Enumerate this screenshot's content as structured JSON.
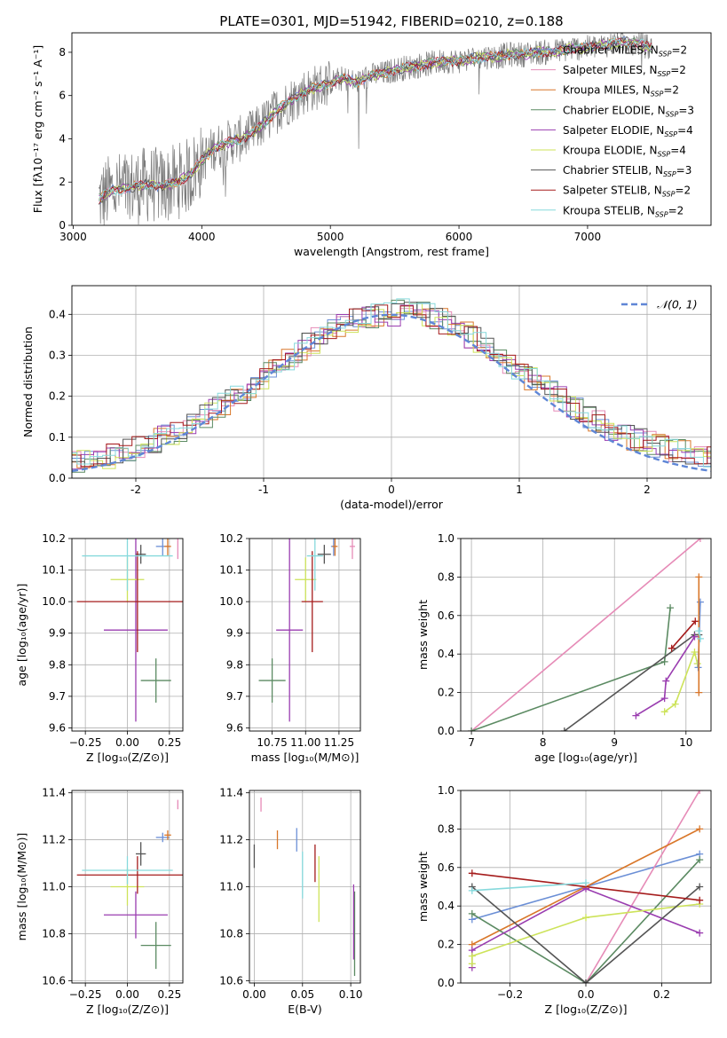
{
  "colors": {
    "chabrier_miles": "#6b8fd6",
    "salpeter_miles": "#e68bb7",
    "kroupa_miles": "#d9772a",
    "chabrier_elodie": "#5b8a62",
    "salpeter_elodie": "#9a3db0",
    "kroupa_elodie": "#cde35a",
    "chabrier_stelib": "#555555",
    "salpeter_stelib": "#a51c1c",
    "kroupa_stelib": "#86d9dc",
    "normal": "#5f86d6"
  },
  "chart_data": [
    {
      "id": "spectrum",
      "type": "line",
      "title": "PLATE=0301, MJD=51942, FIBERID=0210, z=0.188",
      "xlabel": "wavelength [Angstrom, rest frame]",
      "ylabel": "Flux [fλ10⁻¹⁷ erg cm⁻² s⁻¹ A⁻¹]",
      "xlim": [
        2990,
        7960
      ],
      "ylim": [
        0,
        8.9
      ],
      "xticks": [
        3000,
        4000,
        5000,
        6000,
        7000
      ],
      "yticks": [
        0,
        2,
        4,
        6,
        8
      ],
      "legend_placement": "top-right",
      "legend": [
        {
          "label": "Chabrier MILES, N_SSP=2",
          "color_key": "chabrier_miles"
        },
        {
          "label": "Salpeter MILES, N_SSP=2",
          "color_key": "salpeter_miles"
        },
        {
          "label": "Kroupa MILES, N_SSP=2",
          "color_key": "kroupa_miles"
        },
        {
          "label": "Chabrier ELODIE, N_SSP=3",
          "color_key": "chabrier_elodie"
        },
        {
          "label": "Salpeter ELODIE, N_SSP=4",
          "color_key": "salpeter_elodie"
        },
        {
          "label": "Kroupa ELODIE, N_SSP=4",
          "color_key": "kroupa_elodie"
        },
        {
          "label": "Chabrier STELIB, N_SSP=3",
          "color_key": "chabrier_stelib"
        },
        {
          "label": "Salpeter STELIB, N_SSP=2",
          "color_key": "salpeter_stelib"
        },
        {
          "label": "Kroupa STELIB, N_SSP=2",
          "color_key": "kroupa_stelib"
        }
      ],
      "model_continuum": [
        [
          3200,
          1.2
        ],
        [
          3300,
          1.6
        ],
        [
          3400,
          1.7
        ],
        [
          3500,
          1.8
        ],
        [
          3600,
          1.9
        ],
        [
          3700,
          1.8
        ],
        [
          3800,
          2.0
        ],
        [
          3900,
          2.3
        ],
        [
          4000,
          3.0
        ],
        [
          4100,
          3.6
        ],
        [
          4200,
          3.8
        ],
        [
          4300,
          4.0
        ],
        [
          4400,
          4.3
        ],
        [
          4500,
          4.8
        ],
        [
          4600,
          5.4
        ],
        [
          4700,
          5.8
        ],
        [
          4800,
          6.2
        ],
        [
          4900,
          6.4
        ],
        [
          5000,
          6.6
        ],
        [
          5100,
          6.8
        ],
        [
          5200,
          6.6
        ],
        [
          5300,
          6.9
        ],
        [
          5400,
          7.0
        ],
        [
          5500,
          7.2
        ],
        [
          5600,
          7.3
        ],
        [
          5700,
          7.4
        ],
        [
          5800,
          7.5
        ],
        [
          5900,
          7.6
        ],
        [
          6000,
          7.6
        ],
        [
          6100,
          7.7
        ],
        [
          6200,
          7.8
        ],
        [
          6300,
          7.8
        ],
        [
          6400,
          7.9
        ],
        [
          6500,
          7.9
        ],
        [
          6600,
          8.0
        ],
        [
          6700,
          8.0
        ],
        [
          6800,
          8.1
        ],
        [
          6900,
          8.2
        ],
        [
          7000,
          8.2
        ],
        [
          7100,
          8.3
        ],
        [
          7200,
          8.4
        ],
        [
          7300,
          8.5
        ],
        [
          7400,
          8.4
        ],
        [
          7500,
          8.2
        ]
      ]
    },
    {
      "id": "residuals",
      "type": "line",
      "xlabel": "(data-model)/error",
      "ylabel": "Normed distribution",
      "xlim": [
        -2.5,
        2.5
      ],
      "ylim": [
        0,
        0.47
      ],
      "xticks": [
        -2,
        -1,
        0,
        1,
        2
      ],
      "yticks": [
        0.0,
        0.1,
        0.2,
        0.3,
        0.4
      ],
      "grid": true,
      "legend_placement": "top-right",
      "legend": [
        {
          "label": "𝒩(0, 1)",
          "color_key": "normal",
          "style": "dashed"
        }
      ],
      "bin_width": 0.1,
      "normal_mean": 0,
      "normal_sigma": 1
    },
    {
      "id": "age_vs_Z",
      "type": "scatter",
      "xlabel": "Z [log₁₀(Z/Z⊙)]",
      "ylabel": "age  [log₁₀(age/yr)]",
      "xlim": [
        -0.33,
        0.33
      ],
      "ylim": [
        9.59,
        10.2
      ],
      "xticks": [
        -0.25,
        0.0,
        0.25
      ],
      "xticklabels": [
        "−0.25",
        "0.00",
        "0.25"
      ],
      "yticks": [
        9.6,
        9.7,
        9.8,
        9.9,
        10.0,
        10.1,
        10.2
      ],
      "grid": true,
      "points": [
        {
          "color_key": "chabrier_miles",
          "x": 0.21,
          "xerr": 0.04,
          "y": 10.175,
          "yerr": 0.03
        },
        {
          "color_key": "salpeter_miles",
          "x": 0.3,
          "xerr": 0.0,
          "y": 10.175,
          "yerr": 0.04
        },
        {
          "color_key": "kroupa_miles",
          "x": 0.24,
          "xerr": 0.02,
          "y": 10.175,
          "yerr": 0.03
        },
        {
          "color_key": "chabrier_elodie",
          "x": 0.17,
          "xerr": 0.09,
          "y": 9.75,
          "yerr": 0.07
        },
        {
          "color_key": "salpeter_elodie",
          "x": 0.05,
          "xerr": 0.19,
          "y": 9.91,
          "yerr": 0.29
        },
        {
          "color_key": "kroupa_elodie",
          "x": 0.0,
          "xerr": 0.1,
          "y": 10.07,
          "yerr": 0.07
        },
        {
          "color_key": "chabrier_stelib",
          "x": 0.08,
          "xerr": 0.03,
          "y": 10.15,
          "yerr": 0.03
        },
        {
          "color_key": "salpeter_stelib",
          "x": 0.06,
          "xerr": 0.36,
          "y": 10.0,
          "yerr": 0.16
        },
        {
          "color_key": "kroupa_stelib",
          "x": 0.0,
          "xerr": 0.27,
          "y": 10.145,
          "yerr": 0.11
        }
      ]
    },
    {
      "id": "age_vs_mass",
      "type": "scatter",
      "xlabel": "mass [log₁₀(M/M⊙)]",
      "xlim": [
        10.58,
        11.41
      ],
      "ylim": [
        9.59,
        10.2
      ],
      "xticks": [
        10.75,
        11.0,
        11.25
      ],
      "xticklabels": [
        "10.75",
        "11.00",
        "11.25"
      ],
      "yticks": [
        9.6,
        9.7,
        9.8,
        9.9,
        10.0,
        10.1,
        10.2
      ],
      "grid": true,
      "points": [
        {
          "color_key": "chabrier_miles",
          "x": 11.21,
          "xerr": 0.02,
          "y": 10.175,
          "yerr": 0.03
        },
        {
          "color_key": "salpeter_miles",
          "x": 11.35,
          "xerr": 0.02,
          "y": 10.175,
          "yerr": 0.04
        },
        {
          "color_key": "kroupa_miles",
          "x": 11.22,
          "xerr": 0.02,
          "y": 10.175,
          "yerr": 0.03
        },
        {
          "color_key": "chabrier_elodie",
          "x": 10.75,
          "xerr": 0.1,
          "y": 9.75,
          "yerr": 0.07
        },
        {
          "color_key": "salpeter_elodie",
          "x": 10.88,
          "xerr": 0.1,
          "y": 9.91,
          "yerr": 0.29
        },
        {
          "color_key": "kroupa_elodie",
          "x": 11.0,
          "xerr": 0.08,
          "y": 10.07,
          "yerr": 0.07
        },
        {
          "color_key": "chabrier_stelib",
          "x": 11.14,
          "xerr": 0.05,
          "y": 10.15,
          "yerr": 0.03
        },
        {
          "color_key": "salpeter_stelib",
          "x": 11.05,
          "xerr": 0.08,
          "y": 10.0,
          "yerr": 0.16
        },
        {
          "color_key": "kroupa_stelib",
          "x": 11.07,
          "xerr": 0.06,
          "y": 10.145,
          "yerr": 0.11
        }
      ]
    },
    {
      "id": "weight_vs_age",
      "type": "line",
      "xlabel": "age  [log₁₀(age/yr)]",
      "ylabel": "mass weight",
      "xlim": [
        6.85,
        10.35
      ],
      "ylim": [
        0,
        1.0
      ],
      "xticks": [
        7,
        8,
        9,
        10
      ],
      "yticks": [
        0.0,
        0.2,
        0.4,
        0.6,
        0.8,
        1.0
      ],
      "grid": true,
      "series": [
        {
          "color_key": "salpeter_miles",
          "x": [
            7.0,
            10.2
          ],
          "y": [
            0.0,
            1.0
          ]
        },
        {
          "color_key": "chabrier_elodie",
          "x": [
            7.0,
            9.7,
            9.78
          ],
          "y": [
            0.0,
            0.36,
            0.64
          ]
        },
        {
          "color_key": "chabrier_stelib",
          "x": [
            8.3,
            10.12,
            10.18
          ],
          "y": [
            0.0,
            0.5,
            0.5
          ]
        },
        {
          "color_key": "salpeter_elodie",
          "x": [
            9.3,
            9.7,
            9.72,
            10.12
          ],
          "y": [
            0.08,
            0.17,
            0.26,
            0.49
          ]
        },
        {
          "color_key": "kroupa_elodie",
          "x": [
            9.7,
            9.85,
            10.12,
            10.16
          ],
          "y": [
            0.1,
            0.14,
            0.41,
            0.35
          ]
        },
        {
          "color_key": "salpeter_stelib",
          "x": [
            9.8,
            10.13
          ],
          "y": [
            0.43,
            0.57
          ]
        },
        {
          "color_key": "chabrier_miles",
          "x": [
            10.17,
            10.2
          ],
          "y": [
            0.33,
            0.67
          ]
        },
        {
          "color_key": "kroupa_miles",
          "x": [
            10.18,
            10.18
          ],
          "y": [
            0.2,
            0.8
          ]
        },
        {
          "color_key": "kroupa_stelib",
          "x": [
            10.2,
            10.18
          ],
          "y": [
            0.48,
            0.52
          ]
        }
      ]
    },
    {
      "id": "mass_vs_Z",
      "type": "scatter",
      "xlabel": "Z [log₁₀(Z/Z⊙)]",
      "ylabel": "mass [log₁₀(M/M⊙)]",
      "xlim": [
        -0.33,
        0.33
      ],
      "ylim": [
        10.59,
        11.41
      ],
      "xticks": [
        -0.25,
        0.0,
        0.25
      ],
      "xticklabels": [
        "−0.25",
        "0.00",
        "0.25"
      ],
      "yticks": [
        10.6,
        10.8,
        11.0,
        11.2,
        11.4
      ],
      "grid": true,
      "points": [
        {
          "color_key": "chabrier_miles",
          "x": 0.21,
          "xerr": 0.04,
          "y": 11.21,
          "yerr": 0.02
        },
        {
          "color_key": "salpeter_miles",
          "x": 0.3,
          "xerr": 0.0,
          "y": 11.35,
          "yerr": 0.02
        },
        {
          "color_key": "kroupa_miles",
          "x": 0.24,
          "xerr": 0.02,
          "y": 11.22,
          "yerr": 0.02
        },
        {
          "color_key": "chabrier_elodie",
          "x": 0.17,
          "xerr": 0.09,
          "y": 10.75,
          "yerr": 0.1
        },
        {
          "color_key": "salpeter_elodie",
          "x": 0.05,
          "xerr": 0.19,
          "y": 10.88,
          "yerr": 0.1
        },
        {
          "color_key": "kroupa_elodie",
          "x": 0.0,
          "xerr": 0.1,
          "y": 11.0,
          "yerr": 0.08
        },
        {
          "color_key": "chabrier_stelib",
          "x": 0.08,
          "xerr": 0.03,
          "y": 11.14,
          "yerr": 0.05
        },
        {
          "color_key": "salpeter_stelib",
          "x": 0.06,
          "xerr": 0.36,
          "y": 11.05,
          "yerr": 0.08
        },
        {
          "color_key": "kroupa_stelib",
          "x": 0.0,
          "xerr": 0.27,
          "y": 11.07,
          "yerr": 0.06
        }
      ]
    },
    {
      "id": "mass_vs_ebv",
      "type": "scatter",
      "xlabel": "E(B-V)",
      "xlim": [
        -0.005,
        0.11
      ],
      "ylim": [
        10.59,
        11.41
      ],
      "xticks": [
        0.0,
        0.05,
        0.1
      ],
      "xticklabels": [
        "0.00",
        "0.05",
        "0.10"
      ],
      "yticks": [
        10.6,
        10.8,
        11.0,
        11.2,
        11.4
      ],
      "grid": true,
      "points": [
        {
          "color_key": "chabrier_miles",
          "x": 0.044,
          "y": 11.2,
          "yerr": 0.05
        },
        {
          "color_key": "salpeter_miles",
          "x": 0.007,
          "y": 11.35,
          "yerr": 0.03
        },
        {
          "color_key": "kroupa_miles",
          "x": 0.024,
          "y": 11.2,
          "yerr": 0.04
        },
        {
          "color_key": "chabrier_elodie",
          "x": 0.104,
          "y": 10.8,
          "yerr": 0.18
        },
        {
          "color_key": "salpeter_elodie",
          "x": 0.103,
          "y": 10.85,
          "yerr": 0.16
        },
        {
          "color_key": "kroupa_elodie",
          "x": 0.067,
          "y": 10.99,
          "yerr": 0.14
        },
        {
          "color_key": "chabrier_stelib",
          "x": 0.0,
          "y": 11.13,
          "yerr": 0.05
        },
        {
          "color_key": "salpeter_stelib",
          "x": 0.063,
          "y": 11.1,
          "yerr": 0.08
        },
        {
          "color_key": "kroupa_stelib",
          "x": 0.05,
          "y": 11.05,
          "yerr": 0.1
        }
      ]
    },
    {
      "id": "weight_vs_Z",
      "type": "line",
      "xlabel": "Z [log₁₀(Z/Z⊙)]",
      "ylabel": "mass weight",
      "xlim": [
        -0.33,
        0.33
      ],
      "ylim": [
        0,
        1.0
      ],
      "xticks": [
        -0.2,
        0.0,
        0.2
      ],
      "xticklabels": [
        "−0.2",
        "0.0",
        "0.2"
      ],
      "yticks": [
        0.0,
        0.2,
        0.4,
        0.6,
        0.8,
        1.0
      ],
      "grid": true,
      "series": [
        {
          "color_key": "chabrier_miles",
          "x": [
            -0.3,
            0.3
          ],
          "y": [
            0.33,
            0.67
          ]
        },
        {
          "color_key": "salpeter_miles",
          "x": [
            0.0,
            0.3
          ],
          "y": [
            0.0,
            1.0
          ]
        },
        {
          "color_key": "kroupa_miles",
          "x": [
            -0.3,
            0.0,
            0.3
          ],
          "y": [
            0.2,
            0.5,
            0.8
          ]
        },
        {
          "color_key": "chabrier_elodie",
          "x": [
            -0.3,
            0.0,
            0.3
          ],
          "y": [
            0.36,
            0.0,
            0.64
          ]
        },
        {
          "color_key": "salpeter_elodie",
          "x": [
            -0.3,
            -0.3,
            0.0,
            0.3
          ],
          "y": [
            0.08,
            0.17,
            0.49,
            0.26
          ]
        },
        {
          "color_key": "kroupa_elodie",
          "x": [
            -0.3,
            -0.3,
            0.0,
            0.3
          ],
          "y": [
            0.1,
            0.14,
            0.34,
            0.41
          ]
        },
        {
          "color_key": "chabrier_stelib",
          "x": [
            -0.3,
            0.0,
            0.3
          ],
          "y": [
            0.5,
            0.0,
            0.5
          ]
        },
        {
          "color_key": "salpeter_stelib",
          "x": [
            -0.3,
            0.3
          ],
          "y": [
            0.57,
            0.43
          ]
        },
        {
          "color_key": "kroupa_stelib",
          "x": [
            -0.3,
            0.0
          ],
          "y": [
            0.48,
            0.52
          ]
        }
      ]
    }
  ]
}
